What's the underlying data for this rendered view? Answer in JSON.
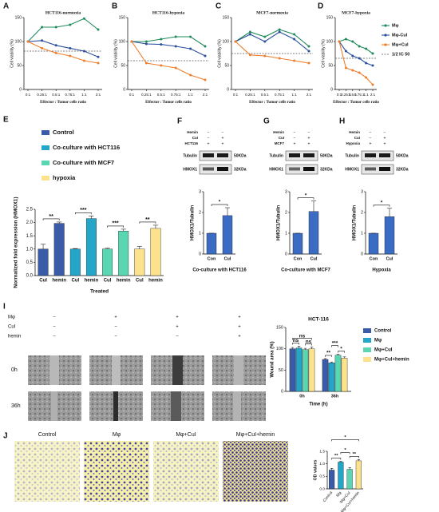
{
  "panel_letters": [
    "A",
    "B",
    "C",
    "D",
    "E",
    "F",
    "G",
    "H",
    "I",
    "J"
  ],
  "chart_data": [
    {
      "type": "line",
      "title": "HCT116-normoxia",
      "xlabel": "Effector : Tumor cells ratio",
      "ylabel": "Cell viability (%)",
      "categories": [
        "0:1",
        "0.25:1",
        "0.5:1",
        "0.75:1",
        "1:1",
        "2:1"
      ],
      "ylim": [
        0,
        150
      ],
      "yticks": [
        0,
        50,
        100,
        150
      ],
      "reference_value": 80,
      "series": [
        {
          "name": "Mφ",
          "color": "#1f8a5b",
          "values": [
            100,
            130,
            130,
            135,
            148,
            125
          ]
        },
        {
          "name": "Mφ-CuI",
          "color": "#2b4f9e",
          "values": [
            100,
            102,
            92,
            86,
            80,
            68
          ]
        },
        {
          "name": "Mφ+CuI",
          "color": "#f07d2a",
          "values": [
            100,
            86,
            76,
            70,
            60,
            55
          ]
        }
      ]
    },
    {
      "type": "line",
      "title": "HCT116-hypoxia",
      "xlabel": "Effector : Tumor cells ratio",
      "ylabel": "Cell viability (%)",
      "categories": [
        "0:1",
        "0.25:1",
        "0.5:1",
        "0.75:1",
        "1:1",
        "2:1"
      ],
      "ylim": [
        0,
        150
      ],
      "yticks": [
        0,
        50,
        100,
        150
      ],
      "reference_value": 60,
      "series": [
        {
          "name": "Mφ",
          "color": "#1f8a5b",
          "values": [
            100,
            100,
            105,
            110,
            110,
            90
          ]
        },
        {
          "name": "Mφ-CuI",
          "color": "#2b4f9e",
          "values": [
            100,
            95,
            94,
            90,
            85,
            70
          ]
        },
        {
          "name": "Mφ+CuI",
          "color": "#f07d2a",
          "values": [
            100,
            55,
            50,
            45,
            30,
            20
          ]
        }
      ]
    },
    {
      "type": "line",
      "title": "MCF7-normoxia",
      "xlabel": "Effector : Tumor cells ratio",
      "ylabel": "Cell viability (%)",
      "categories": [
        "0:1",
        "0.25:1",
        "0.5:1",
        "0.75:1",
        "1:1",
        "2:1"
      ],
      "ylim": [
        0,
        150
      ],
      "yticks": [
        0,
        50,
        100,
        150
      ],
      "reference_value": 75,
      "series": [
        {
          "name": "Mφ",
          "color": "#1f8a5b",
          "values": [
            100,
            120,
            110,
            125,
            115,
            90
          ]
        },
        {
          "name": "Mφ-CuI",
          "color": "#2b4f9e",
          "values": [
            100,
            115,
            100,
            120,
            105,
            80
          ]
        },
        {
          "name": "Mφ+CuI",
          "color": "#f07d2a",
          "values": [
            100,
            72,
            70,
            65,
            60,
            55
          ]
        }
      ]
    },
    {
      "type": "line",
      "title": "MCF7-hypoxia",
      "xlabel": "Effector : Tumor cells ratio",
      "ylabel": "Cell viability (%)",
      "categories": [
        "0:1",
        "0.25:1",
        "0.5:1",
        "0.75:1",
        "1:1",
        "2:1"
      ],
      "ylim": [
        0,
        150
      ],
      "yticks": [
        0,
        50,
        100,
        150
      ],
      "reference_value": 65,
      "reference_label": "1/2 IC 50",
      "legend": true,
      "series": [
        {
          "name": "Mφ",
          "color": "#1f8a5b",
          "values": [
            100,
            105,
            100,
            90,
            85,
            75
          ]
        },
        {
          "name": "Mφ-CuI",
          "color": "#2b4f9e",
          "values": [
            100,
            80,
            70,
            65,
            55,
            50
          ]
        },
        {
          "name": "Mφ+CuI",
          "color": "#f07d2a",
          "values": [
            100,
            45,
            40,
            35,
            25,
            10
          ]
        }
      ]
    },
    {
      "type": "bar",
      "xlabel": "Treated",
      "ylabel": "Normalized fold expression (HMOX1)",
      "categories": [
        "CuI",
        "hemin",
        "CuI",
        "hemin",
        "CuI",
        "hemin",
        "CuI",
        "hemin"
      ],
      "ylim": [
        0,
        2.5
      ],
      "yticks": [
        {
          "value": 0,
          "label": "0.0"
        },
        {
          "value": 0.5,
          "label": "0.5"
        },
        {
          "value": 1,
          "label": "1.0"
        },
        {
          "value": 1.5,
          "label": "1.5"
        },
        {
          "value": 2,
          "label": "2.0"
        },
        {
          "value": 2.5,
          "label": "2.5"
        }
      ],
      "legend": true,
      "series": [
        {
          "name": "Control",
          "color": "#3a5ca8",
          "values": [
            1.0,
            1.97,
            null,
            null,
            null,
            null,
            null,
            null
          ],
          "errors": [
            0.18,
            0.05,
            null,
            null,
            null,
            null,
            null,
            null
          ]
        },
        {
          "name": "Co-culture with HCT116",
          "color": "#23a6c8",
          "values": [
            null,
            null,
            1.0,
            2.15,
            null,
            null,
            null,
            null
          ],
          "errors": [
            null,
            null,
            0.02,
            0.1,
            null,
            null,
            null,
            null
          ]
        },
        {
          "name": "Co-culture with MCF7",
          "color": "#5ad6b3",
          "values": [
            null,
            null,
            null,
            null,
            1.0,
            1.68,
            null,
            null
          ],
          "errors": [
            null,
            null,
            null,
            null,
            0.03,
            0.07,
            null,
            null
          ]
        },
        {
          "name": "hypoxia",
          "color": "#fce28c",
          "values": [
            null,
            null,
            null,
            null,
            null,
            null,
            1.0,
            1.78
          ],
          "errors": [
            null,
            null,
            null,
            null,
            null,
            null,
            0.1,
            0.12
          ]
        }
      ],
      "significance": [
        "**",
        "***",
        "***",
        "**"
      ]
    },
    {
      "type": "bar",
      "xlabel": "Co-culture with HCT116",
      "ylabel": "HMOX1/Tubulin",
      "categories": [
        "Con",
        "CuI"
      ],
      "values": [
        1.0,
        1.85
      ],
      "errors": [
        0,
        0.38
      ],
      "color": "#3b6cc4",
      "ylim": [
        0,
        3
      ],
      "yticks": [
        0,
        1,
        2,
        3
      ],
      "significance": [
        "*"
      ]
    },
    {
      "type": "bar",
      "xlabel": "Co-culture with MCF7",
      "ylabel": "HMOX1/Tubulin",
      "categories": [
        "Con",
        "CuI"
      ],
      "values": [
        1.0,
        2.05
      ],
      "errors": [
        0,
        0.5
      ],
      "color": "#3b6cc4",
      "ylim": [
        0,
        3
      ],
      "yticks": [
        0,
        1,
        2,
        3
      ],
      "significance": [
        "*"
      ]
    },
    {
      "type": "bar",
      "xlabel": "Hypoxia",
      "ylabel": "HMOX1/Tubulin",
      "categories": [
        "Con",
        "CuI"
      ],
      "values": [
        1.0,
        1.8
      ],
      "errors": [
        0,
        0.4
      ],
      "color": "#3b6cc4",
      "ylim": [
        0,
        3
      ],
      "yticks": [
        0,
        1,
        2,
        3
      ],
      "significance": [
        "*"
      ]
    },
    {
      "type": "bar",
      "title": "HCT-116",
      "xlabel": "Time (h)",
      "ylabel": "Wound area (%)",
      "categories": [
        "0h",
        "36h"
      ],
      "ylim": [
        0,
        150
      ],
      "yticks": [
        0,
        50,
        100,
        150
      ],
      "legend": true,
      "series": [
        {
          "name": "Control",
          "color": "#3a5ca8",
          "values": [
            100,
            75
          ],
          "errors": [
            3,
            2
          ]
        },
        {
          "name": "Mφ",
          "color": "#23a6c8",
          "values": [
            102,
            67
          ],
          "errors": [
            4,
            2
          ]
        },
        {
          "name": "Mφ+CuI",
          "color": "#5ad6b3",
          "values": [
            98,
            85
          ],
          "errors": [
            3,
            2
          ]
        },
        {
          "name": "Mφ+CuI+hemin",
          "color": "#fce28c",
          "values": [
            100,
            78
          ],
          "errors": [
            4,
            3
          ]
        }
      ],
      "significance": [
        "ns",
        "ns",
        "ns",
        "**",
        "***",
        "*"
      ]
    },
    {
      "type": "bar",
      "ylabel": "OD values",
      "categories": [
        "Control",
        "Mφ",
        "Mφ+CuI",
        "Mφ+CuI+hemin"
      ],
      "values": [
        0.75,
        1.07,
        0.78,
        1.12
      ],
      "errors": [
        0.07,
        0.03,
        0.07,
        0.05
      ],
      "colors": [
        "#3a5ca8",
        "#23a6c8",
        "#5ad6b3",
        "#fce28c"
      ],
      "ylim": [
        0,
        1.5
      ],
      "yticks": [
        {
          "value": 0,
          "label": "0.0"
        },
        {
          "value": 0.5,
          "label": "0.5"
        },
        {
          "value": 1,
          "label": "1.0"
        },
        {
          "value": 1.5,
          "label": "1.5"
        }
      ],
      "significance": [
        "**",
        "*",
        "*",
        "**"
      ]
    }
  ],
  "blots": [
    {
      "rows": [
        {
          "label": "Hemin",
          "marks": [
            "−",
            "−"
          ]
        },
        {
          "label": "CuI",
          "marks": [
            "−",
            "+"
          ]
        },
        {
          "label": "HCT116",
          "marks": [
            "+",
            "+"
          ]
        }
      ],
      "bands": [
        {
          "name": "Tubulin",
          "size": "50KDa"
        },
        {
          "name": "HMOX1",
          "size": "32KDa"
        }
      ]
    },
    {
      "rows": [
        {
          "label": "Hemin",
          "marks": [
            "−",
            "−"
          ]
        },
        {
          "label": "CuI",
          "marks": [
            "−",
            "+"
          ]
        },
        {
          "label": "MCF7",
          "marks": [
            "+",
            "+"
          ]
        }
      ],
      "bands": [
        {
          "name": "Tubulin",
          "size": "50KDa"
        },
        {
          "name": "HMOX1",
          "size": "32KDa"
        }
      ]
    },
    {
      "rows": [
        {
          "label": "Hemin",
          "marks": [
            "−",
            "−"
          ]
        },
        {
          "label": "CuI",
          "marks": [
            "−",
            "+"
          ]
        },
        {
          "label": "Hypoxia",
          "marks": [
            "+",
            "+"
          ]
        }
      ],
      "bands": [
        {
          "name": "Tubulin",
          "size": "50KDa"
        },
        {
          "name": "HMOX1",
          "size": "32KDa"
        }
      ]
    }
  ],
  "scratch": {
    "rows": [
      {
        "label": "Mφ",
        "marks": [
          "−",
          "+",
          "+",
          "+"
        ]
      },
      {
        "label": "CuI",
        "marks": [
          "−",
          "−",
          "+",
          "+"
        ]
      },
      {
        "label": "hemin",
        "marks": [
          "−",
          "−",
          "−",
          "+"
        ]
      }
    ],
    "times": [
      "0h",
      "36h"
    ]
  }
}
